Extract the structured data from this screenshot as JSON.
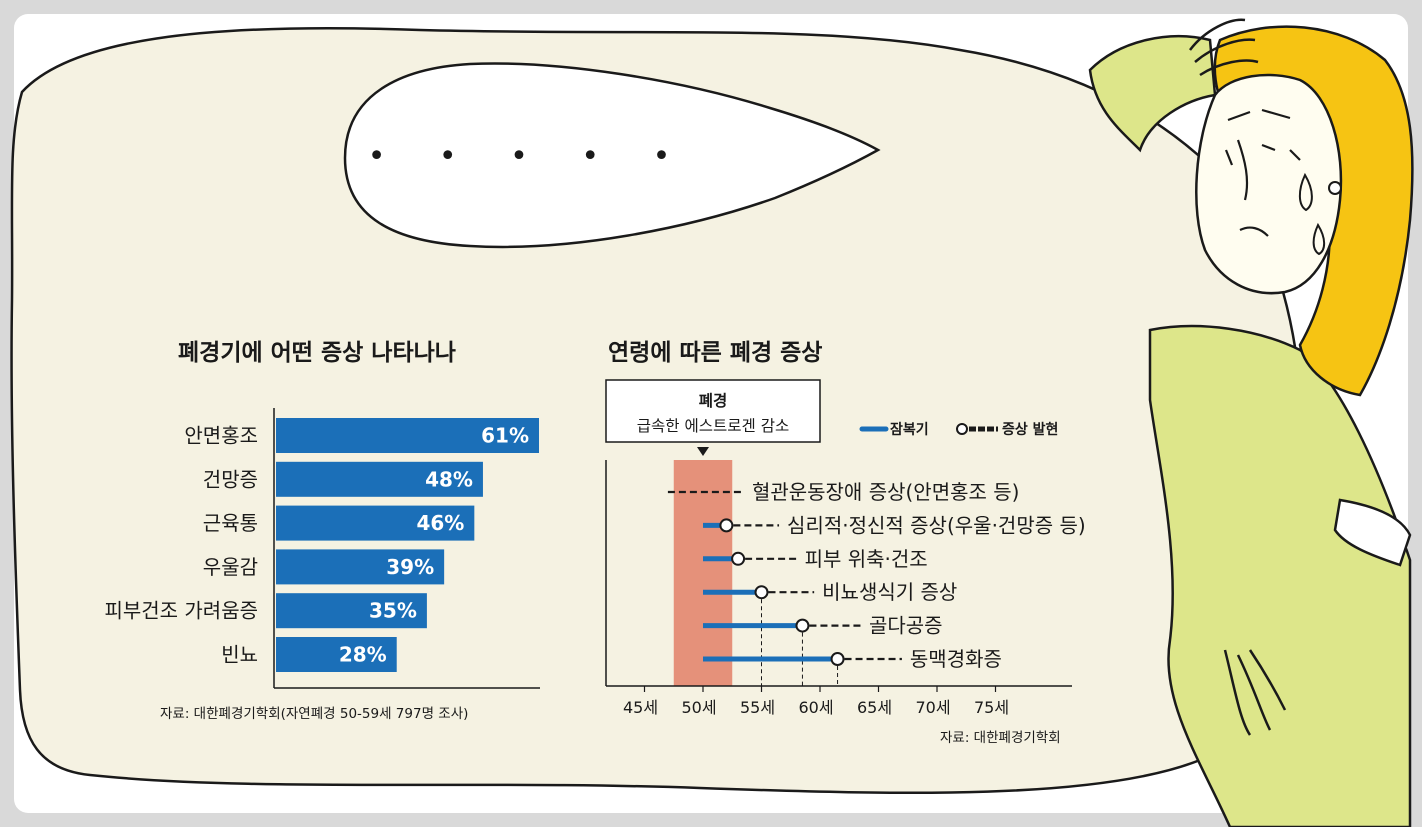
{
  "colors": {
    "background": "#f5f2e2",
    "bar": "#1b6fb8",
    "menopause_band": "#e5917a",
    "hair": "#f6c413",
    "sweater": "#dde68a",
    "speech_bubble": "#ffffff"
  },
  "speech_bubble_text": "• • • • •",
  "chart_data": [
    {
      "type": "bar",
      "orientation": "horizontal",
      "title": "폐경기에 어떤 증상 나타나나",
      "categories": [
        "안면홍조",
        "건망증",
        "근육통",
        "우울감",
        "피부건조 가려움증",
        "빈뇨"
      ],
      "values": [
        61,
        48,
        46,
        39,
        35,
        28
      ],
      "value_labels": [
        "61%",
        "48%",
        "46%",
        "39%",
        "35%",
        "28%"
      ],
      "unit": "%",
      "xlim": [
        0,
        61
      ],
      "source": "자료: 대한폐경기학회(자연폐경 50-59세 797명 조사)"
    },
    {
      "type": "timeline",
      "title": "연령에 따른 폐경 증상",
      "menopause_box": {
        "line1": "폐경",
        "line2": "급속한 에스트로겐 감소",
        "age_range": [
          47.5,
          52.5
        ]
      },
      "legend": [
        {
          "symbol": "solid",
          "label": "잠복기"
        },
        {
          "symbol": "circle-dashed",
          "label": "증상 발현"
        }
      ],
      "x_ticks": [
        "45세",
        "50세",
        "55세",
        "60세",
        "65세",
        "70세",
        "75세"
      ],
      "x_tick_values": [
        45,
        50,
        55,
        60,
        65,
        70,
        75
      ],
      "xlim": [
        41,
        81
      ],
      "grid": false,
      "symptoms": [
        {
          "name": "혈관운동장애 증상(안면홍조 등)",
          "latent_start": null,
          "onset": null,
          "dash_start": 47,
          "dash_end": 53.5
        },
        {
          "name": "심리적·정신적 증상(우울·건망증 등)",
          "latent_start": 50,
          "onset": 52,
          "dash_end": 56.5
        },
        {
          "name": "피부 위축·건조",
          "latent_start": 50,
          "onset": 53,
          "dash_end": 58
        },
        {
          "name": "비뇨생식기 증상",
          "latent_start": 50,
          "onset": 55,
          "dash_end": 59.5
        },
        {
          "name": "골다공증",
          "latent_start": 50,
          "onset": 58.5,
          "dash_end": 63.5
        },
        {
          "name": "동맥경화증",
          "latent_start": 50,
          "onset": 61.5,
          "dash_end": 67
        }
      ],
      "source": "자료: 대한폐경기학회"
    }
  ]
}
